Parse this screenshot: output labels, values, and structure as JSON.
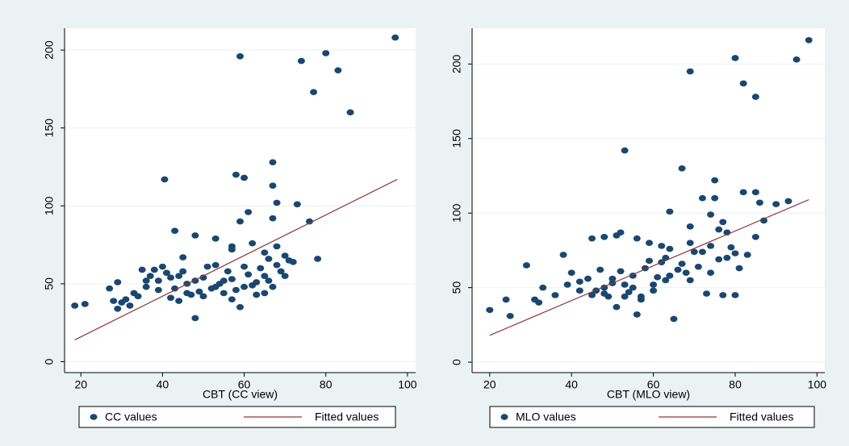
{
  "chart_data": [
    {
      "type": "scatter",
      "x_label": "CBT (CC view)",
      "xlim": [
        16,
        102
      ],
      "ylim": [
        -7,
        214
      ],
      "xticks": [
        20,
        40,
        60,
        80,
        100
      ],
      "yticks": [
        0,
        50,
        100,
        150,
        200
      ],
      "grid": true,
      "series": [
        {
          "name": "CC values",
          "color": "#1a476f",
          "x": [
            97,
            80,
            74,
            59,
            83,
            77,
            86,
            67,
            40.5,
            58,
            60,
            67,
            73,
            68,
            61,
            59,
            76,
            67,
            43,
            48,
            53,
            57,
            62,
            65,
            68,
            45,
            57,
            66,
            78,
            72,
            70,
            18.5,
            21,
            27,
            28,
            29,
            29,
            31,
            30,
            33,
            35,
            36,
            37,
            38,
            39,
            40,
            41,
            42,
            44,
            43,
            45,
            46,
            47,
            48,
            48,
            49,
            50,
            51,
            52,
            53,
            54,
            55,
            56,
            57,
            58,
            59,
            60,
            61,
            62,
            63,
            64,
            65,
            66,
            67,
            68,
            69,
            70,
            71,
            36,
            39,
            42,
            44,
            46,
            50,
            53,
            55,
            57,
            60,
            63,
            65,
            34,
            32
          ],
          "values": [
            208,
            198,
            193,
            196,
            187,
            173,
            160,
            128,
            117,
            120,
            118,
            113,
            101,
            102,
            96,
            90,
            90,
            92,
            84,
            81,
            79,
            74,
            76,
            70,
            74,
            67,
            72,
            66,
            66,
            64,
            68,
            36,
            37,
            47,
            39,
            34,
            51,
            40,
            38,
            44,
            59,
            48,
            55,
            59,
            52,
            61,
            57,
            54,
            55,
            47,
            58,
            50,
            43,
            28,
            52,
            45,
            54,
            61,
            47,
            62,
            50,
            44,
            58,
            53,
            46,
            35,
            61,
            56,
            49,
            43,
            60,
            55,
            52,
            48,
            62,
            58,
            55,
            65,
            52,
            46,
            41,
            39,
            44,
            42,
            48,
            52,
            40,
            48,
            51,
            44,
            42,
            36
          ]
        },
        {
          "name": "Fitted values",
          "color": "#90353b",
          "type": "line",
          "x": [
            18.5,
            97.5
          ],
          "values": [
            14,
            117
          ]
        }
      ]
    },
    {
      "type": "scatter",
      "x_label": "CBT (MLO view)",
      "xlim": [
        15.7,
        101.9
      ],
      "ylim": [
        -7,
        224
      ],
      "xticks": [
        20,
        40,
        60,
        80,
        100
      ],
      "yticks": [
        0,
        50,
        100,
        150,
        200
      ],
      "grid": true,
      "series": [
        {
          "name": "MLO values",
          "color": "#1a476f",
          "x": [
            98,
            95,
            80,
            69,
            82,
            85,
            53,
            67,
            75,
            72,
            75,
            86,
            90,
            93,
            82,
            85,
            64,
            74,
            77,
            87,
            69,
            76,
            78,
            85,
            52,
            51,
            48,
            45,
            56,
            59,
            62,
            64,
            69,
            72,
            74,
            79,
            80,
            83,
            38,
            29,
            20,
            24,
            25,
            31,
            32,
            33,
            36,
            39,
            40,
            42,
            44,
            46,
            47,
            48,
            49,
            50,
            51,
            52,
            53,
            54,
            55,
            56,
            57,
            58,
            59,
            60,
            61,
            62,
            63,
            64,
            65,
            66,
            67,
            68,
            69,
            70,
            71,
            73,
            74,
            76,
            77,
            78,
            80,
            81,
            42,
            45,
            48,
            50,
            53,
            55,
            57,
            60,
            63
          ],
          "values": [
            216,
            203,
            204,
            195,
            187,
            178,
            142,
            130,
            122,
            110,
            110,
            107,
            106,
            108,
            114,
            114,
            101,
            99,
            94,
            95,
            91,
            89,
            87,
            84,
            87,
            85,
            84,
            83,
            83,
            80,
            78,
            76,
            80,
            74,
            78,
            77,
            73,
            72,
            72,
            65,
            35,
            42,
            31,
            42,
            40,
            50,
            45,
            52,
            60,
            54,
            56,
            48,
            62,
            50,
            44,
            56,
            37,
            61,
            52,
            47,
            58,
            32,
            44,
            63,
            68,
            52,
            57,
            67,
            70,
            58,
            29,
            62,
            66,
            60,
            55,
            74,
            64,
            46,
            60,
            69,
            45,
            70,
            45,
            63,
            48,
            45,
            46,
            53,
            44,
            50,
            42,
            48,
            55
          ]
        },
        {
          "name": "Fitted values",
          "color": "#90353b",
          "type": "line",
          "x": [
            20,
            98
          ],
          "values": [
            18,
            109
          ]
        }
      ]
    }
  ]
}
